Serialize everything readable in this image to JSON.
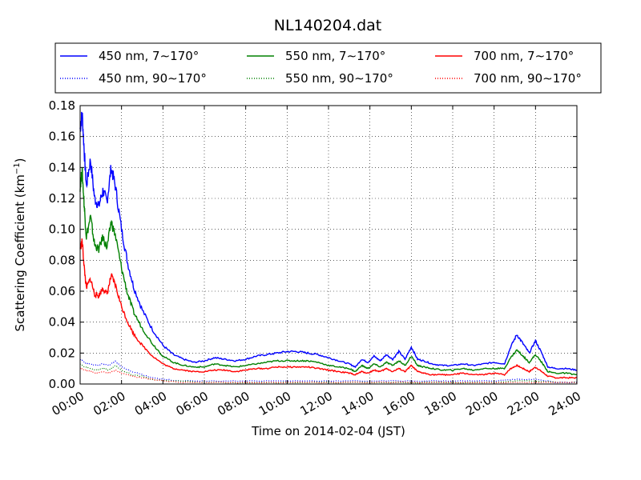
{
  "chart_data": {
    "type": "line",
    "title": "NL140204.dat",
    "xlabel": "Time on 2014-02-04 (JST)",
    "ylabel": "Scattering Coefficient (km",
    "ylabel_sup": "−1",
    "ylabel_close": ")",
    "xlim": [
      0,
      24
    ],
    "ylim": [
      0,
      0.18
    ],
    "grid": true,
    "legend_placement": "top-center",
    "x_ticks": [
      {
        "value": 0,
        "label": "00:00"
      },
      {
        "value": 2,
        "label": "02:00"
      },
      {
        "value": 4,
        "label": "04:00"
      },
      {
        "value": 6,
        "label": "06:00"
      },
      {
        "value": 8,
        "label": "08:00"
      },
      {
        "value": 10,
        "label": "10:00"
      },
      {
        "value": 12,
        "label": "12:00"
      },
      {
        "value": 14,
        "label": "14:00"
      },
      {
        "value": 16,
        "label": "16:00"
      },
      {
        "value": 18,
        "label": "18:00"
      },
      {
        "value": 20,
        "label": "20:00"
      },
      {
        "value": 22,
        "label": "22:00"
      },
      {
        "value": 24,
        "label": "24:00"
      }
    ],
    "y_ticks": [
      {
        "value": 0,
        "label": "0.00"
      },
      {
        "value": 0.02,
        "label": "0.02"
      },
      {
        "value": 0.04,
        "label": "0.04"
      },
      {
        "value": 0.06,
        "label": "0.06"
      },
      {
        "value": 0.08,
        "label": "0.08"
      },
      {
        "value": 0.1,
        "label": "0.10"
      },
      {
        "value": 0.12,
        "label": "0.12"
      },
      {
        "value": 0.14,
        "label": "0.14"
      },
      {
        "value": 0.16,
        "label": "0.16"
      },
      {
        "value": 0.18,
        "label": "0.18"
      }
    ],
    "series": [
      {
        "name": "450 nm, 7∼170°",
        "color": "#0000ff",
        "style": "solid",
        "x": [
          0,
          0.1,
          0.2,
          0.3,
          0.5,
          0.7,
          0.9,
          1.1,
          1.3,
          1.5,
          1.7,
          2.0,
          2.3,
          2.6,
          3.0,
          3.5,
          4.0,
          4.5,
          5.0,
          5.5,
          6.0,
          6.5,
          7.0,
          7.5,
          8.0,
          8.5,
          9.0,
          9.5,
          10.0,
          10.5,
          11.0,
          11.5,
          12.0,
          12.5,
          13.0,
          13.3,
          13.6,
          13.9,
          14.2,
          14.5,
          14.8,
          15.1,
          15.4,
          15.7,
          16.0,
          16.3,
          16.6,
          17.0,
          17.5,
          18.0,
          18.5,
          19.0,
          19.5,
          20.0,
          20.5,
          20.8,
          21.1,
          21.4,
          21.7,
          22.0,
          22.3,
          22.6,
          23.0,
          23.5,
          24.0
        ],
        "y": [
          0.165,
          0.175,
          0.15,
          0.128,
          0.145,
          0.12,
          0.115,
          0.125,
          0.118,
          0.14,
          0.128,
          0.1,
          0.078,
          0.062,
          0.048,
          0.035,
          0.025,
          0.019,
          0.016,
          0.014,
          0.015,
          0.017,
          0.016,
          0.015,
          0.016,
          0.018,
          0.019,
          0.02,
          0.021,
          0.021,
          0.02,
          0.019,
          0.017,
          0.015,
          0.013,
          0.011,
          0.016,
          0.014,
          0.018,
          0.015,
          0.019,
          0.016,
          0.021,
          0.016,
          0.024,
          0.016,
          0.015,
          0.013,
          0.012,
          0.012,
          0.013,
          0.012,
          0.013,
          0.014,
          0.013,
          0.024,
          0.032,
          0.026,
          0.02,
          0.028,
          0.02,
          0.011,
          0.01,
          0.01,
          0.009
        ]
      },
      {
        "name": "550 nm, 7∼170°",
        "color": "#008000",
        "style": "solid",
        "x": [
          0,
          0.1,
          0.2,
          0.3,
          0.5,
          0.7,
          0.9,
          1.1,
          1.3,
          1.5,
          1.7,
          2.0,
          2.3,
          2.6,
          3.0,
          3.5,
          4.0,
          4.5,
          5.0,
          5.5,
          6.0,
          6.5,
          7.0,
          7.5,
          8.0,
          8.5,
          9.0,
          9.5,
          10.0,
          10.5,
          11.0,
          11.5,
          12.0,
          12.5,
          13.0,
          13.3,
          13.6,
          13.9,
          14.2,
          14.5,
          14.8,
          15.1,
          15.4,
          15.7,
          16.0,
          16.3,
          16.6,
          17.0,
          17.5,
          18.0,
          18.5,
          19.0,
          19.5,
          20.0,
          20.5,
          20.8,
          21.1,
          21.4,
          21.7,
          22.0,
          22.3,
          22.6,
          23.0,
          23.5,
          24.0
        ],
        "y": [
          0.128,
          0.137,
          0.115,
          0.095,
          0.108,
          0.09,
          0.087,
          0.095,
          0.088,
          0.105,
          0.096,
          0.075,
          0.058,
          0.046,
          0.036,
          0.026,
          0.018,
          0.014,
          0.012,
          0.011,
          0.011,
          0.013,
          0.012,
          0.011,
          0.012,
          0.013,
          0.014,
          0.015,
          0.015,
          0.015,
          0.015,
          0.014,
          0.012,
          0.011,
          0.01,
          0.008,
          0.012,
          0.01,
          0.013,
          0.011,
          0.014,
          0.012,
          0.015,
          0.012,
          0.018,
          0.012,
          0.011,
          0.01,
          0.009,
          0.009,
          0.01,
          0.009,
          0.01,
          0.01,
          0.01,
          0.017,
          0.022,
          0.018,
          0.014,
          0.019,
          0.014,
          0.008,
          0.007,
          0.007,
          0.006
        ]
      },
      {
        "name": "700 nm, 7∼170°",
        "color": "#ff0000",
        "style": "solid",
        "x": [
          0,
          0.1,
          0.2,
          0.3,
          0.5,
          0.7,
          0.9,
          1.1,
          1.3,
          1.5,
          1.7,
          2.0,
          2.3,
          2.6,
          3.0,
          3.5,
          4.0,
          4.5,
          5.0,
          5.5,
          6.0,
          6.5,
          7.0,
          7.5,
          8.0,
          8.5,
          9.0,
          9.5,
          10.0,
          10.5,
          11.0,
          11.5,
          12.0,
          12.5,
          13.0,
          13.3,
          13.6,
          13.9,
          14.2,
          14.5,
          14.8,
          15.1,
          15.4,
          15.7,
          16.0,
          16.3,
          16.6,
          17.0,
          17.5,
          18.0,
          18.5,
          19.0,
          19.5,
          20.0,
          20.5,
          20.8,
          21.1,
          21.4,
          21.7,
          22.0,
          22.3,
          22.6,
          23.0,
          23.5,
          24.0
        ],
        "y": [
          0.088,
          0.092,
          0.075,
          0.062,
          0.068,
          0.058,
          0.057,
          0.062,
          0.058,
          0.07,
          0.064,
          0.05,
          0.04,
          0.032,
          0.025,
          0.018,
          0.013,
          0.01,
          0.009,
          0.008,
          0.008,
          0.009,
          0.009,
          0.008,
          0.009,
          0.01,
          0.01,
          0.011,
          0.011,
          0.011,
          0.011,
          0.01,
          0.009,
          0.008,
          0.007,
          0.006,
          0.008,
          0.007,
          0.009,
          0.008,
          0.01,
          0.008,
          0.01,
          0.008,
          0.012,
          0.008,
          0.007,
          0.006,
          0.006,
          0.006,
          0.007,
          0.006,
          0.006,
          0.007,
          0.006,
          0.01,
          0.012,
          0.01,
          0.008,
          0.011,
          0.008,
          0.005,
          0.004,
          0.004,
          0.004
        ]
      },
      {
        "name": "450 nm, 90∼170°",
        "color": "#0000ff",
        "style": "dotted",
        "x": [
          0,
          0.2,
          0.5,
          0.8,
          1.1,
          1.4,
          1.7,
          2.0,
          2.5,
          3.0,
          3.5,
          4.0,
          5.0,
          6.0,
          8.0,
          10.0,
          12.0,
          14.0,
          16.0,
          18.0,
          20.0,
          21.0,
          22.0,
          23.0,
          24.0
        ],
        "y": [
          0.016,
          0.014,
          0.013,
          0.012,
          0.013,
          0.012,
          0.015,
          0.011,
          0.008,
          0.006,
          0.004,
          0.003,
          0.002,
          0.002,
          0.002,
          0.002,
          0.002,
          0.002,
          0.002,
          0.002,
          0.002,
          0.003,
          0.003,
          0.001,
          0.001
        ]
      },
      {
        "name": "550 nm, 90∼170°",
        "color": "#008000",
        "style": "dotted",
        "x": [
          0,
          0.2,
          0.5,
          0.8,
          1.1,
          1.4,
          1.7,
          2.0,
          2.5,
          3.0,
          3.5,
          4.0,
          5.0,
          6.0,
          8.0,
          10.0,
          12.0,
          14.0,
          16.0,
          18.0,
          20.0,
          21.0,
          22.0,
          23.0,
          24.0
        ],
        "y": [
          0.013,
          0.011,
          0.01,
          0.009,
          0.01,
          0.009,
          0.012,
          0.009,
          0.006,
          0.005,
          0.003,
          0.002,
          0.002,
          0.001,
          0.001,
          0.001,
          0.001,
          0.001,
          0.001,
          0.001,
          0.001,
          0.002,
          0.002,
          0.001,
          0.001
        ]
      },
      {
        "name": "700 nm, 90∼170°",
        "color": "#ff0000",
        "style": "dotted",
        "x": [
          0,
          0.2,
          0.5,
          0.8,
          1.1,
          1.4,
          1.7,
          2.0,
          2.5,
          3.0,
          3.5,
          4.0,
          5.0,
          6.0,
          8.0,
          10.0,
          12.0,
          14.0,
          16.0,
          18.0,
          20.0,
          21.0,
          22.0,
          23.0,
          24.0
        ],
        "y": [
          0.01,
          0.009,
          0.008,
          0.007,
          0.008,
          0.007,
          0.009,
          0.007,
          0.005,
          0.004,
          0.003,
          0.002,
          0.001,
          0.001,
          0.001,
          0.001,
          0.001,
          0.001,
          0.001,
          0.001,
          0.001,
          0.001,
          0.001,
          0.001,
          0.001
        ]
      }
    ]
  }
}
